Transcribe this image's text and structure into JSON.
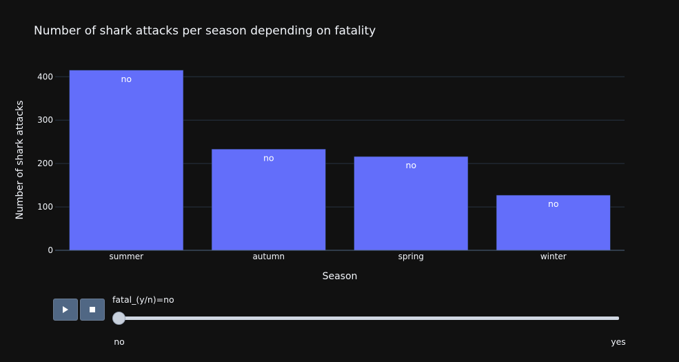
{
  "chart_data": {
    "type": "bar",
    "title": "Number of shark attacks per season depending on fatality",
    "xlabel": "Season",
    "ylabel": "Number of shark attacks",
    "categories": [
      "summer",
      "autumn",
      "spring",
      "winter"
    ],
    "series": [
      {
        "name": "no",
        "values": [
          415,
          233,
          216,
          127
        ],
        "data_labels": [
          "no",
          "no",
          "no",
          "no"
        ]
      }
    ],
    "yticks": [
      0,
      100,
      200,
      300,
      400
    ],
    "ylim": [
      0,
      437
    ],
    "grid": true,
    "colors": {
      "bar": "#636efa",
      "bar_border": "#2a3f5f",
      "grid": "#283442",
      "background": "#111111",
      "text": "#f2f5fa"
    }
  },
  "slider": {
    "current_label": "fatal_(y/n)=no",
    "steps": [
      "no",
      "yes"
    ],
    "active_index": 0
  },
  "controls": {
    "play_icon": "play-icon",
    "stop_icon": "stop-icon"
  }
}
